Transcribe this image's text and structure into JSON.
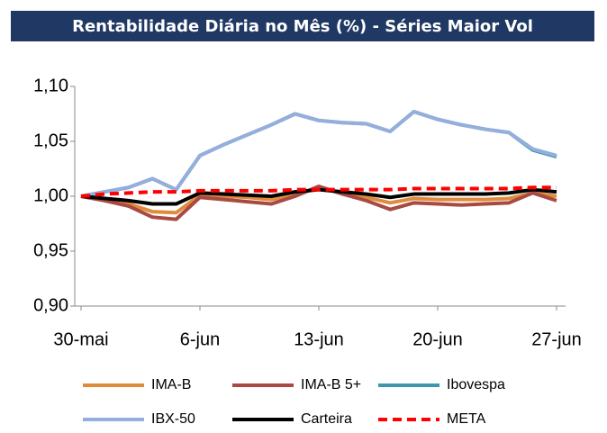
{
  "chart_data": {
    "type": "line",
    "title": "Rentabilidade Diária no Mês (%) - Séries Maior Vol",
    "categories": [
      "30-mai",
      null,
      null,
      null,
      null,
      "6-jun",
      null,
      null,
      null,
      null,
      "13-jun",
      null,
      null,
      null,
      null,
      "20-jun",
      null,
      null,
      null,
      null,
      "27-jun"
    ],
    "series": [
      {
        "name": "IMA-B",
        "color": "#e08b3a",
        "dashed": false,
        "values": [
          1.0,
          0.997,
          0.993,
          0.986,
          0.985,
          1.001,
          1.0,
          0.999,
          0.997,
          1.002,
          1.007,
          1.003,
          0.999,
          0.994,
          0.998,
          0.997,
          0.997,
          0.997,
          0.998,
          1.003,
          1.0
        ]
      },
      {
        "name": "IMA-B 5+",
        "color": "#a84a43",
        "dashed": false,
        "values": [
          1.0,
          0.996,
          0.991,
          0.981,
          0.979,
          0.999,
          0.997,
          0.995,
          0.993,
          1.0,
          1.009,
          1.002,
          0.996,
          0.988,
          0.994,
          0.993,
          0.992,
          0.993,
          0.994,
          1.003,
          0.996
        ]
      },
      {
        "name": "Ibovespa",
        "color": "#3e97ad",
        "dashed": false,
        "values": [
          1.0,
          1.004,
          1.008,
          1.016,
          1.006,
          1.037,
          1.047,
          1.056,
          1.065,
          1.075,
          1.069,
          1.067,
          1.066,
          1.059,
          1.077,
          1.07,
          1.065,
          1.061,
          1.058,
          1.042,
          1.036
        ]
      },
      {
        "name": "IBX-50",
        "color": "#95aedc",
        "dashed": false,
        "values": [
          1.0,
          1.004,
          1.008,
          1.016,
          1.006,
          1.037,
          1.047,
          1.056,
          1.065,
          1.075,
          1.069,
          1.067,
          1.066,
          1.059,
          1.077,
          1.07,
          1.065,
          1.061,
          1.058,
          1.043,
          1.037
        ]
      },
      {
        "name": "Carteira",
        "color": "#000000",
        "dashed": false,
        "values": [
          1.0,
          0.998,
          0.996,
          0.993,
          0.993,
          1.003,
          1.002,
          1.001,
          1.0,
          1.004,
          1.006,
          1.004,
          1.002,
          0.999,
          1.002,
          1.002,
          1.002,
          1.002,
          1.003,
          1.006,
          1.004
        ]
      },
      {
        "name": "META",
        "color": "#ff0000",
        "dashed": true,
        "values": [
          1.0,
          1.002,
          1.003,
          1.004,
          1.004,
          1.005,
          1.005,
          1.005,
          1.005,
          1.006,
          1.006,
          1.006,
          1.006,
          1.006,
          1.007,
          1.007,
          1.007,
          1.007,
          1.007,
          1.008,
          1.008
        ]
      }
    ],
    "ylim": [
      0.9,
      1.1
    ],
    "yticks": [
      {
        "value": 0.9,
        "label": "0,90"
      },
      {
        "value": 0.95,
        "label": "0,95"
      },
      {
        "value": 1.0,
        "label": "1,00"
      },
      {
        "value": 1.05,
        "label": "1,05"
      },
      {
        "value": 1.1,
        "label": "1,10"
      }
    ],
    "grid": false,
    "legend": "bottom"
  }
}
